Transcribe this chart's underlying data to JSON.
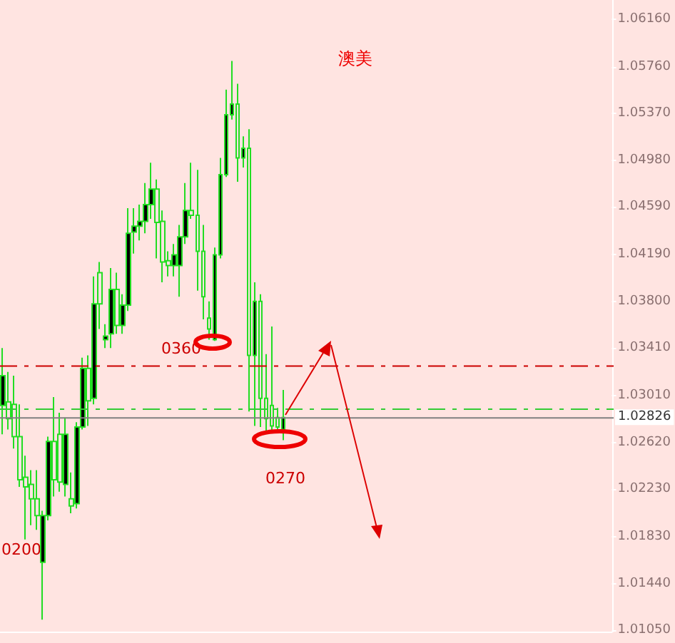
{
  "chart_data": {
    "type": "candlestick",
    "title": "澳美",
    "categories": [
      null,
      null,
      null,
      null,
      null,
      null,
      null,
      null,
      null,
      null,
      null,
      null,
      null,
      null,
      null,
      null,
      null,
      null,
      null,
      null,
      null,
      null,
      null,
      null,
      null,
      null,
      null,
      null,
      null,
      null,
      null,
      null,
      null,
      null,
      null,
      null,
      null,
      null,
      null,
      null,
      null,
      null,
      null,
      null,
      null,
      null,
      null,
      null,
      null,
      null,
      null,
      null,
      null,
      null,
      null,
      null,
      null,
      null,
      null,
      null,
      null,
      null,
      null,
      null,
      null,
      null,
      null,
      null,
      null,
      null,
      null,
      null,
      null,
      null,
      null,
      null,
      null,
      null,
      null,
      null,
      null,
      null,
      null,
      null,
      null,
      null,
      null,
      null,
      null,
      null,
      null,
      null,
      null,
      null,
      null,
      null,
      null,
      null,
      null,
      null,
      null,
      null,
      null,
      null,
      null,
      null,
      null
    ],
    "ohlc": [
      [
        1.0293,
        1.0341,
        1.0269,
        1.0318
      ],
      [
        1.0296,
        1.0321,
        1.0273,
        1.0282
      ],
      [
        1.0294,
        1.0318,
        1.0257,
        1.0267
      ],
      [
        1.0267,
        1.0294,
        1.0225,
        1.0231
      ],
      [
        1.0233,
        1.0251,
        1.0181,
        1.0225
      ],
      [
        1.0227,
        1.0239,
        1.0193,
        1.0215
      ],
      [
        1.0215,
        1.0239,
        1.0189,
        1.0201
      ],
      [
        1.0162,
        1.0205,
        1.0114,
        1.0201
      ],
      [
        1.0201,
        1.0267,
        1.0197,
        1.0263
      ],
      [
        1.0263,
        1.03,
        1.0217,
        1.0231
      ],
      [
        1.0269,
        1.0287,
        1.0221,
        1.0229
      ],
      [
        1.0227,
        1.0283,
        1.0217,
        1.0269
      ],
      [
        1.0215,
        1.0237,
        1.0203,
        1.0209
      ],
      [
        1.0211,
        1.0279,
        1.0207,
        1.0275
      ],
      [
        1.0275,
        1.0333,
        1.0273,
        1.0324
      ],
      [
        1.0324,
        1.0335,
        1.0276,
        1.0297
      ],
      [
        1.0299,
        1.0401,
        1.0294,
        1.0378
      ],
      [
        1.0404,
        1.0413,
        1.0357,
        1.0378
      ],
      [
        1.0348,
        1.0361,
        1.0341,
        1.0351
      ],
      [
        1.0353,
        1.0408,
        1.0341,
        1.039
      ],
      [
        1.039,
        1.0404,
        1.0353,
        1.036
      ],
      [
        1.036,
        1.0386,
        1.0353,
        1.0377
      ],
      [
        1.0377,
        1.0458,
        1.0372,
        1.0437
      ],
      [
        1.0438,
        1.0458,
        1.042,
        1.0443
      ],
      [
        1.0443,
        1.0461,
        1.0431,
        1.0447
      ],
      [
        1.0447,
        1.0479,
        1.0437,
        1.0461
      ],
      [
        1.0461,
        1.0496,
        1.0449,
        1.0474
      ],
      [
        1.0474,
        1.0482,
        1.0416,
        1.0446
      ],
      [
        1.0447,
        1.0456,
        1.0396,
        1.0413
      ],
      [
        1.0414,
        1.0422,
        1.0401,
        1.041
      ],
      [
        1.041,
        1.0428,
        1.0401,
        1.0419
      ],
      [
        1.041,
        1.0444,
        1.0384,
        1.0434
      ],
      [
        1.0434,
        1.0479,
        1.0428,
        1.0456
      ],
      [
        1.0456,
        1.0496,
        1.0449,
        1.0452
      ],
      [
        1.0452,
        1.049,
        1.0389,
        1.0422
      ],
      [
        1.0422,
        1.0444,
        1.0365,
        1.0384
      ],
      [
        1.0366,
        1.038,
        1.0348,
        1.0357
      ],
      [
        1.0348,
        1.0425,
        1.0347,
        1.0419
      ],
      [
        1.0419,
        1.05,
        1.0416,
        1.0486
      ],
      [
        1.0486,
        1.0557,
        1.0484,
        1.0536
      ],
      [
        1.0536,
        1.0581,
        1.0532,
        1.0545
      ],
      [
        1.0545,
        1.0562,
        1.048,
        1.05
      ],
      [
        1.05,
        1.0518,
        1.0492,
        1.0508
      ],
      [
        1.0508,
        1.0524,
        1.0288,
        1.0335
      ],
      [
        1.0335,
        1.0396,
        1.0276,
        1.038
      ],
      [
        1.038,
        1.0386,
        1.0275,
        1.0299
      ],
      [
        1.0299,
        1.0336,
        1.027,
        1.0282
      ],
      [
        1.0293,
        1.0359,
        1.027,
        1.0276
      ],
      [
        1.0283,
        1.0291,
        1.0273,
        1.0275
      ],
      [
        1.0273,
        1.0306,
        1.0264,
        1.0283
      ],
      null,
      null,
      null,
      null,
      null,
      null,
      null,
      null,
      null,
      null,
      null,
      null,
      null,
      null,
      null,
      null,
      null,
      null,
      null,
      null,
      null,
      null,
      null,
      null,
      null,
      null,
      null,
      null,
      null,
      null,
      null,
      null,
      null,
      null,
      null,
      null,
      null,
      null,
      null,
      null,
      null,
      null,
      null,
      null,
      null,
      null,
      null,
      null,
      null,
      null,
      null,
      null,
      null,
      null,
      null,
      null,
      null
    ],
    "color": "#22dd22",
    "ylim": [
      1.0104,
      1.0632
    ],
    "yticks": [
      {
        "value": 1.0616,
        "label": "1.06160"
      },
      {
        "value": 1.0576,
        "label": "1.05760"
      },
      {
        "value": 1.0537,
        "label": "1.05370"
      },
      {
        "value": 1.0498,
        "label": "1.04980"
      },
      {
        "value": 1.0459,
        "label": "1.04590"
      },
      {
        "value": 1.0419,
        "label": "1.04190"
      },
      {
        "value": 1.038,
        "label": "1.03800"
      },
      {
        "value": 1.0341,
        "label": "1.03410"
      },
      {
        "value": 1.0301,
        "label": "1.03010"
      },
      {
        "value": 1.0262,
        "label": "1.02620"
      },
      {
        "value": 1.0223,
        "label": "1.02230"
      },
      {
        "value": 1.0183,
        "label": "1.01830"
      },
      {
        "value": 1.0144,
        "label": "1.01440"
      },
      {
        "value": 1.0105,
        "label": "1.01050"
      }
    ],
    "ref_lines": [
      {
        "axis": "y",
        "value": 1.0326,
        "color": "#cc0000",
        "line_style": "dashed"
      },
      {
        "axis": "y",
        "value": 1.029,
        "color": "#33cc33",
        "line_style": "dashed"
      },
      {
        "axis": "y",
        "value": 1.02826,
        "label": "1.02826",
        "color": "#808080",
        "line_style": "solid"
      }
    ],
    "annotations": [
      "0360",
      "0270",
      "0200"
    ],
    "grid": false
  }
}
